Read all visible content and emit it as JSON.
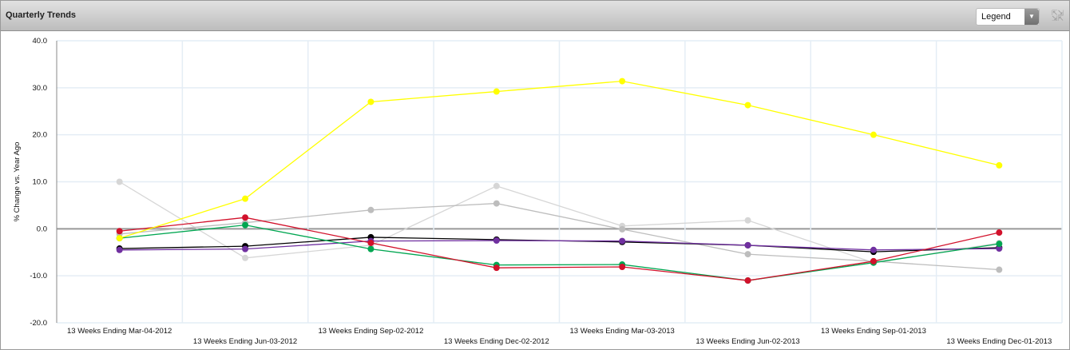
{
  "header": {
    "title": "Quarterly Trends",
    "legend_select": "Legend",
    "legend_arrow_icon": "chevron-down-icon",
    "expand_icon": "expand-icon"
  },
  "chart_data": {
    "type": "line",
    "title": "Quarterly Trends",
    "ylabel": "% Change vs. Year Ago",
    "xlabel": "",
    "ylim": [
      -20,
      40
    ],
    "yticks": [
      "40.0",
      "30.0",
      "20.0",
      "10.0",
      "0.0",
      "-10.0",
      "-20.0"
    ],
    "grid": true,
    "categories": [
      "13 Weeks Ending Mar-04-2012",
      "13 Weeks Ending Jun-03-2012",
      "13 Weeks Ending Sep-02-2012",
      "13 Weeks Ending Dec-02-2012",
      "13 Weeks Ending Mar-03-2013",
      "13 Weeks Ending Jun-02-2013",
      "13 Weeks Ending Sep-01-2013",
      "13 Weeks Ending Dec-01-2013"
    ],
    "series": [
      {
        "name": "light-gray",
        "color": "#d6d6d6",
        "values": [
          10.0,
          -6.2,
          -3.5,
          9.1,
          0.6,
          1.8,
          -7.2,
          -3.0
        ]
      },
      {
        "name": "gray",
        "color": "#bdbdbd",
        "values": [
          -1.1,
          1.3,
          4.0,
          5.4,
          -0.1,
          -5.4,
          -6.9,
          -8.7
        ]
      },
      {
        "name": "black",
        "color": "#000000",
        "values": [
          -4.2,
          -3.7,
          -1.8,
          -2.3,
          -2.8,
          -3.5,
          -4.9,
          -4.0
        ]
      },
      {
        "name": "purple",
        "color": "#7030a0",
        "values": [
          -4.5,
          -4.3,
          -2.6,
          -2.5,
          -2.6,
          -3.5,
          -4.5,
          -4.2
        ]
      },
      {
        "name": "green",
        "color": "#00a651",
        "values": [
          -2.0,
          0.8,
          -4.3,
          -7.7,
          -7.6,
          -11.0,
          -7.2,
          -3.2
        ]
      },
      {
        "name": "red",
        "color": "#d2112b",
        "values": [
          -0.5,
          2.4,
          -3.0,
          -8.3,
          -8.1,
          -11.0,
          -6.9,
          -0.8
        ]
      },
      {
        "name": "yellow",
        "color": "#ffff00",
        "values": [
          -2.0,
          6.4,
          27.0,
          29.2,
          31.4,
          26.3,
          20.0,
          13.5
        ]
      }
    ]
  }
}
